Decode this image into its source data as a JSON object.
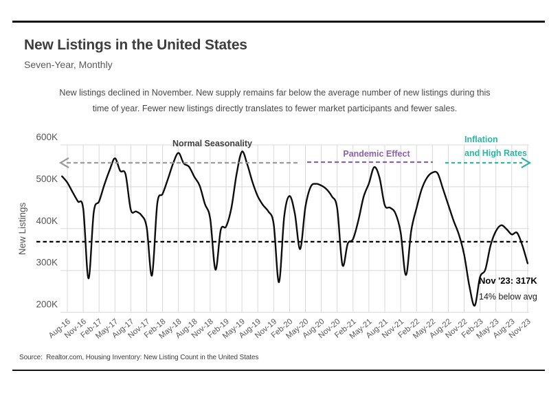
{
  "header": {
    "title": "New Listings in the United States",
    "subtitle": "Seven-Year, Monthly"
  },
  "description": {
    "line1": "New listings declined in November. New supply remains far below the average number of new listings during this",
    "line2": "time of year. Fewer new listings directly translates to fewer market participants and fewer sales."
  },
  "chart_data": {
    "type": "line",
    "title": "New Listings in the United States",
    "ylabel": "New Listings",
    "unit": "thousands of listings",
    "ylim_thousands": [
      200,
      600
    ],
    "grid": true,
    "gridline_color": "#d8d8d8",
    "line_color": "#0d0d0d",
    "tick_label_color": "#565656",
    "y_tick_values": [
      600,
      500,
      400,
      300,
      200
    ],
    "y_tick_labels": [
      "600K",
      "500K",
      "400K",
      "300K",
      "200K"
    ],
    "x_tick_labels": [
      "Aug-16",
      "Nov-16",
      "Feb-17",
      "May-17",
      "Aug-17",
      "Nov-17",
      "Feb-18",
      "May-18",
      "Aug-18",
      "Nov-18",
      "Feb-19",
      "May-19",
      "Aug-19",
      "Nov-19",
      "Feb-20",
      "May-20",
      "Aug-20",
      "Nov-20",
      "Feb-21",
      "May-21",
      "Aug-21",
      "Nov-21",
      "Feb-22",
      "May-22",
      "Aug-22",
      "Nov-22",
      "Feb-23",
      "May-23",
      "Aug-23",
      "Nov-23"
    ],
    "series": [
      {
        "name": "New listings, monthly",
        "start_month": "Jul-2016",
        "end_month": "Nov-2023",
        "unit": "thousands",
        "values": [
          525,
          510,
          487,
          465,
          448,
          281,
          440,
          465,
          505,
          540,
          568,
          538,
          530,
          445,
          441,
          432,
          403,
          288,
          460,
          483,
          518,
          556,
          581,
          556,
          548,
          524,
          503,
          459,
          424,
          302,
          397,
          405,
          449,
          531,
          584,
          554,
          511,
          477,
          456,
          441,
          411,
          272,
          430,
          478,
          436,
          351,
          452,
          500,
          507,
          503,
          494,
          477,
          449,
          313,
          364,
          375,
          419,
          476,
          508,
          547,
          522,
          456,
          450,
          437,
          391,
          289,
          395,
          449,
          495,
          522,
          534,
          532,
          495,
          457,
          419,
          386,
          338,
          262,
          216,
          284,
          302,
          360,
          394,
          408,
          399,
          386,
          390,
          360,
          317
        ]
      }
    ],
    "average_line": {
      "value_thousands": 368.6,
      "style": "black-dashed"
    },
    "annotations": [
      {
        "id": "normal-seasonality",
        "text": "Normal Seasonality",
        "color": "#404040",
        "arrow": {
          "direction": "left",
          "color": "#9a9a9a",
          "style": "dashed"
        }
      },
      {
        "id": "pandemic-effect",
        "text": "Pandemic Effect",
        "color": "#8d5fa9",
        "arrow": {
          "direction": "none",
          "color": "#8d5fa9",
          "style": "dashed"
        }
      },
      {
        "id": "inflation-high-rates",
        "lines": [
          "Inflation",
          "and High Rates"
        ],
        "color": "#2fb3a2",
        "arrow": {
          "direction": "right",
          "color": "#2fb3a2",
          "style": "dashed"
        }
      },
      {
        "id": "latest-value",
        "lines": [
          "Nov '23: 317K",
          "14% below avg"
        ],
        "color": "#000000"
      }
    ]
  },
  "source": {
    "text": "Source:  Realtor.com, Housing Inventory: New Listing Count in the United States"
  }
}
